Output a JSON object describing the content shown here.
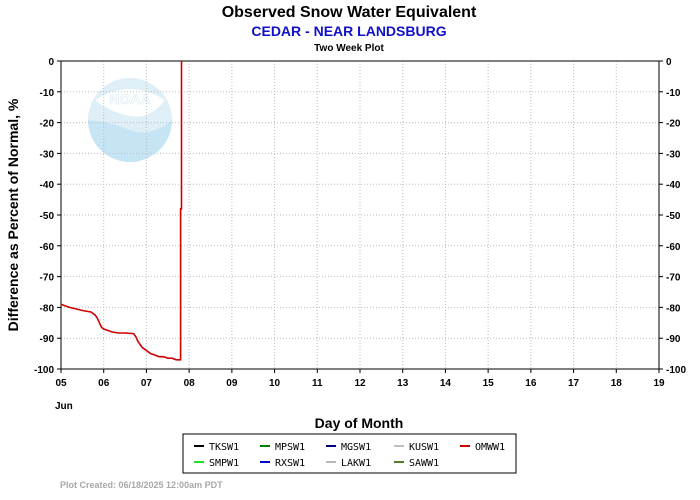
{
  "chart_data": {
    "type": "line",
    "title": "Observed Snow Water Equivalent",
    "subtitle": "CEDAR - NEAR LANDSBURG",
    "subsubtitle": "Two Week Plot",
    "ylabel": "Difference as Percent of Normal, %",
    "xlabel": "Day of Month",
    "month_label": "Jun",
    "ylim": [
      -100,
      0
    ],
    "yticks": [
      0,
      -10,
      -20,
      -30,
      -40,
      -50,
      -60,
      -70,
      -80,
      -90,
      -100
    ],
    "xlim": [
      5,
      19
    ],
    "xticks": [
      5,
      6,
      7,
      8,
      9,
      10,
      11,
      12,
      13,
      14,
      15,
      16,
      17,
      18,
      19
    ],
    "xtick_labels": [
      "05",
      "06",
      "07",
      "08",
      "09",
      "10",
      "11",
      "12",
      "13",
      "14",
      "15",
      "16",
      "17",
      "18",
      "19"
    ],
    "grid": true,
    "legend_placement": "bottom",
    "series": [
      {
        "name": "TKSW1",
        "color": "#000000",
        "x": [],
        "y": []
      },
      {
        "name": "MPSW1",
        "color": "#008000",
        "x": [],
        "y": []
      },
      {
        "name": "MGSW1",
        "color": "#000080",
        "x": [],
        "y": []
      },
      {
        "name": "KUSW1",
        "color": "#c0c0c0",
        "x": [],
        "y": []
      },
      {
        "name": "OMWW1",
        "color": "#d00000",
        "x": [
          5.0,
          5.1,
          5.2,
          5.35,
          5.5,
          5.7,
          5.8,
          5.85,
          5.9,
          5.95,
          6.0,
          6.1,
          6.2,
          6.35,
          6.5,
          6.7,
          6.75,
          6.8,
          6.85,
          6.9,
          7.0,
          7.1,
          7.2,
          7.3,
          7.4,
          7.5,
          7.6,
          7.7,
          7.8,
          7.8,
          7.82,
          7.82
        ],
        "y": [
          -79,
          -79.5,
          -80,
          -80.5,
          -81,
          -81.5,
          -82.5,
          -83.5,
          -85,
          -86.5,
          -87,
          -87.5,
          -88,
          -88.3,
          -88.3,
          -88.5,
          -89.5,
          -91,
          -92,
          -93,
          -94,
          -95,
          -95.5,
          -96,
          -96,
          -96.5,
          -96.5,
          -97,
          -97,
          -48,
          -48,
          0
        ]
      },
      {
        "name": "SMPW1",
        "color": "#20e020",
        "x": [],
        "y": []
      },
      {
        "name": "RXSW1",
        "color": "#0000e0",
        "x": [],
        "y": []
      },
      {
        "name": "LAKW1",
        "color": "#b8b8b8",
        "x": [],
        "y": []
      },
      {
        "name": "SAWW1",
        "color": "#557a2a",
        "x": [],
        "y": []
      }
    ]
  },
  "footer": "Plot Created: 06/18/2025 12:00am PDT"
}
